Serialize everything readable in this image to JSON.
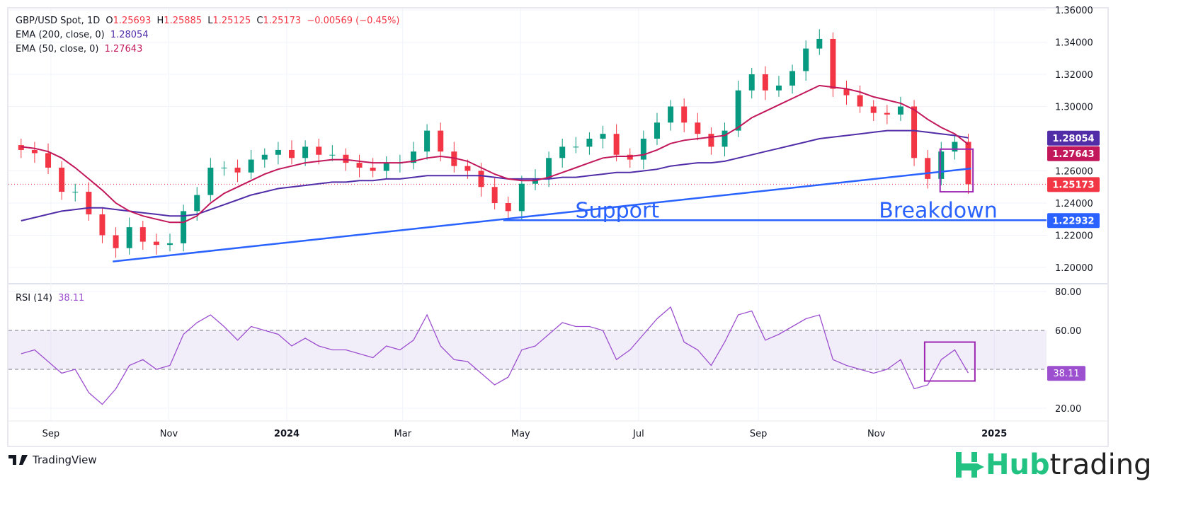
{
  "header": {
    "symbol": "GBP/USD Spot, 1D",
    "o_label": "O",
    "o": "1.25693",
    "h_label": "H",
    "h": "1.25885",
    "l_label": "L",
    "l": "1.25125",
    "c_label": "C",
    "c": "1.25173",
    "change": "−0.00569 (−0.45%)",
    "ema200_label": "EMA (200, close, 0)",
    "ema200_value": "1.28054",
    "ema50_label": "EMA (50, close, 0)",
    "ema50_value": "1.27643",
    "rsi_label": "RSI (14)",
    "rsi_value": "38.11"
  },
  "branding": {
    "tradingview": "TradingView",
    "hub_a": "Hub",
    "hub_b": "trading"
  },
  "colors": {
    "up": "#089981",
    "down": "#f23645",
    "ema200": "#512da8",
    "ema50": "#c2185b",
    "trend": "#2962ff",
    "rsi": "#9c4fcf",
    "box": "#9c27b0"
  },
  "chart_data": {
    "type": "candlestick",
    "price_axis": {
      "ticks": [
        "1.20000",
        "1.22000",
        "1.24000",
        "1.26000",
        "1.30000",
        "1.32000",
        "1.34000",
        "1.36000"
      ],
      "range": [
        1.19,
        1.36
      ]
    },
    "time_axis": {
      "ticks": [
        {
          "label": "Sep",
          "date": "2023-09-01"
        },
        {
          "label": "Nov",
          "date": "2023-11-01"
        },
        {
          "label": "2024",
          "date": "2024-01-01",
          "bold": true
        },
        {
          "label": "Mar",
          "date": "2024-03-01"
        },
        {
          "label": "May",
          "date": "2024-05-01"
        },
        {
          "label": "Jul",
          "date": "2024-07-01"
        },
        {
          "label": "Sep",
          "date": "2024-09-01"
        },
        {
          "label": "Nov",
          "date": "2024-11-01"
        },
        {
          "label": "2025",
          "date": "2025-01-01",
          "bold": true
        }
      ]
    },
    "price_labels": [
      {
        "text": "1.28054",
        "color": "#512da8",
        "value": 1.28054
      },
      {
        "text": "1.27643",
        "color": "#c2185b",
        "value": 1.27643
      },
      {
        "text": "1.25173",
        "color": "#f23645",
        "value": 1.25173
      },
      {
        "text": "1.22932",
        "color": "#2962ff",
        "value": 1.22932
      }
    ],
    "dates": [
      "2023-08-14",
      "2023-08-21",
      "2023-08-28",
      "2023-09-04",
      "2023-09-11",
      "2023-09-18",
      "2023-09-25",
      "2023-10-02",
      "2023-10-09",
      "2023-10-16",
      "2023-10-23",
      "2023-10-30",
      "2023-11-06",
      "2023-11-13",
      "2023-11-20",
      "2023-11-27",
      "2023-12-04",
      "2023-12-11",
      "2023-12-18",
      "2023-12-25",
      "2024-01-01",
      "2024-01-08",
      "2024-01-15",
      "2024-01-22",
      "2024-01-29",
      "2024-02-05",
      "2024-02-12",
      "2024-02-19",
      "2024-02-26",
      "2024-03-04",
      "2024-03-11",
      "2024-03-18",
      "2024-03-25",
      "2024-04-01",
      "2024-04-08",
      "2024-04-15",
      "2024-04-22",
      "2024-04-29",
      "2024-05-06",
      "2024-05-13",
      "2024-05-20",
      "2024-05-27",
      "2024-06-03",
      "2024-06-10",
      "2024-06-17",
      "2024-06-24",
      "2024-07-01",
      "2024-07-08",
      "2024-07-15",
      "2024-07-22",
      "2024-07-29",
      "2024-08-05",
      "2024-08-12",
      "2024-08-19",
      "2024-08-26",
      "2024-09-02",
      "2024-09-09",
      "2024-09-16",
      "2024-09-23",
      "2024-09-30",
      "2024-10-07",
      "2024-10-14",
      "2024-10-21",
      "2024-10-28",
      "2024-11-04",
      "2024-11-11",
      "2024-11-18",
      "2024-11-25",
      "2024-12-02",
      "2024-12-09",
      "2024-12-16"
    ],
    "close": [
      1.273,
      1.271,
      1.262,
      1.247,
      1.247,
      1.233,
      1.22,
      1.212,
      1.225,
      1.216,
      1.214,
      1.215,
      1.235,
      1.245,
      1.262,
      1.262,
      1.259,
      1.267,
      1.27,
      1.273,
      1.268,
      1.275,
      1.27,
      1.27,
      1.265,
      1.262,
      1.26,
      1.265,
      1.265,
      1.272,
      1.285,
      1.272,
      1.263,
      1.26,
      1.25,
      1.24,
      1.235,
      1.252,
      1.255,
      1.268,
      1.275,
      1.275,
      1.28,
      1.283,
      1.27,
      1.267,
      1.28,
      1.29,
      1.3,
      1.29,
      1.283,
      1.275,
      1.285,
      1.31,
      1.32,
      1.31,
      1.313,
      1.322,
      1.336,
      1.342,
      1.311,
      1.307,
      1.3,
      1.296,
      1.295,
      1.3,
      1.268,
      1.255,
      1.272,
      1.278,
      1.25173
    ],
    "ema50": [
      1.275,
      1.274,
      1.272,
      1.268,
      1.262,
      1.255,
      1.248,
      1.24,
      1.235,
      1.232,
      1.23,
      1.228,
      1.228,
      1.232,
      1.24,
      1.246,
      1.25,
      1.254,
      1.258,
      1.261,
      1.263,
      1.265,
      1.266,
      1.267,
      1.267,
      1.266,
      1.265,
      1.265,
      1.265,
      1.266,
      1.268,
      1.269,
      1.268,
      1.266,
      1.262,
      1.258,
      1.255,
      1.254,
      1.254,
      1.256,
      1.259,
      1.262,
      1.265,
      1.268,
      1.269,
      1.269,
      1.27,
      1.273,
      1.277,
      1.279,
      1.28,
      1.281,
      1.282,
      1.287,
      1.293,
      1.297,
      1.301,
      1.305,
      1.309,
      1.313,
      1.312,
      1.311,
      1.309,
      1.306,
      1.304,
      1.302,
      1.298,
      1.292,
      1.287,
      1.283,
      1.27643
    ],
    "ema200": [
      1.229,
      1.231,
      1.233,
      1.235,
      1.236,
      1.237,
      1.237,
      1.236,
      1.235,
      1.234,
      1.233,
      1.232,
      1.232,
      1.233,
      1.236,
      1.239,
      1.242,
      1.245,
      1.247,
      1.249,
      1.25,
      1.251,
      1.252,
      1.253,
      1.253,
      1.254,
      1.254,
      1.255,
      1.255,
      1.256,
      1.257,
      1.257,
      1.257,
      1.257,
      1.257,
      1.256,
      1.255,
      1.255,
      1.255,
      1.255,
      1.256,
      1.256,
      1.257,
      1.258,
      1.259,
      1.259,
      1.26,
      1.261,
      1.263,
      1.264,
      1.265,
      1.265,
      1.266,
      1.268,
      1.27,
      1.272,
      1.274,
      1.276,
      1.278,
      1.28,
      1.281,
      1.282,
      1.283,
      1.284,
      1.285,
      1.285,
      1.285,
      1.284,
      1.283,
      1.282,
      1.28054
    ],
    "rsi": {
      "axis_ticks": [
        "20.00",
        "60.00",
        "80.00"
      ],
      "band": [
        40,
        60
      ],
      "values": [
        48,
        50,
        44,
        38,
        40,
        28,
        22,
        30,
        42,
        45,
        40,
        42,
        58,
        64,
        68,
        62,
        55,
        62,
        60,
        58,
        52,
        56,
        52,
        50,
        50,
        48,
        46,
        52,
        50,
        55,
        68,
        52,
        45,
        44,
        38,
        32,
        36,
        50,
        52,
        58,
        64,
        62,
        62,
        60,
        45,
        50,
        58,
        66,
        72,
        54,
        50,
        42,
        54,
        68,
        70,
        55,
        58,
        62,
        66,
        68,
        45,
        42,
        40,
        38,
        40,
        45,
        30,
        32,
        45,
        50,
        38.11
      ]
    },
    "annotations": [
      {
        "type": "trendline",
        "from": [
          "2023-10-03",
          1.2037
        ],
        "to": [
          "2024-12-20",
          1.2615
        ]
      },
      {
        "type": "hline",
        "from": "2024-04-22",
        "value": 1.22932
      },
      {
        "type": "text",
        "text": "Support",
        "at": [
          "2024-06-20",
          1.238
        ]
      },
      {
        "type": "text",
        "text": "Breakdown",
        "at": [
          "2024-12-03",
          1.238
        ]
      },
      {
        "type": "box",
        "pane": "price",
        "from": [
          "2024-12-04",
          1.2735
        ],
        "to": [
          "2024-12-21",
          1.247
        ]
      },
      {
        "type": "box",
        "pane": "rsi",
        "from": [
          "2024-11-26",
          54
        ],
        "to": [
          "2024-12-22",
          34
        ]
      }
    ]
  }
}
